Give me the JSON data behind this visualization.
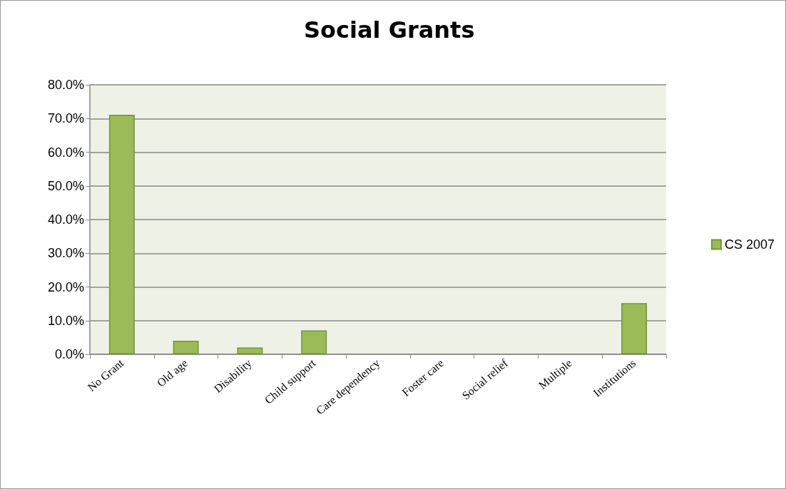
{
  "chart_data": {
    "type": "bar",
    "title": "Social Grants",
    "categories": [
      "No Grant",
      "Old age",
      "Disability",
      "Child support",
      "Care dependency",
      "Foster care",
      "Social relief",
      "Multiple",
      "Institutions"
    ],
    "series": [
      {
        "name": "CS 2007",
        "color": "#9bbb59",
        "values": [
          71.1,
          4.0,
          2.0,
          7.1,
          0,
          0,
          0,
          0,
          15.2
        ]
      }
    ],
    "ylim": [
      0,
      80
    ],
    "yticks": [
      {
        "value": 0,
        "label": "0.0%"
      },
      {
        "value": 10,
        "label": "10.0%"
      },
      {
        "value": 20,
        "label": "20.0%"
      },
      {
        "value": 30,
        "label": "30.0%"
      },
      {
        "value": 40,
        "label": "40.0%"
      },
      {
        "value": 50,
        "label": "50.0%"
      },
      {
        "value": 60,
        "label": "60.0%"
      },
      {
        "value": 70,
        "label": "70.0%"
      },
      {
        "value": 80,
        "label": "80.0%"
      }
    ],
    "grid": "y",
    "legend": "right"
  }
}
